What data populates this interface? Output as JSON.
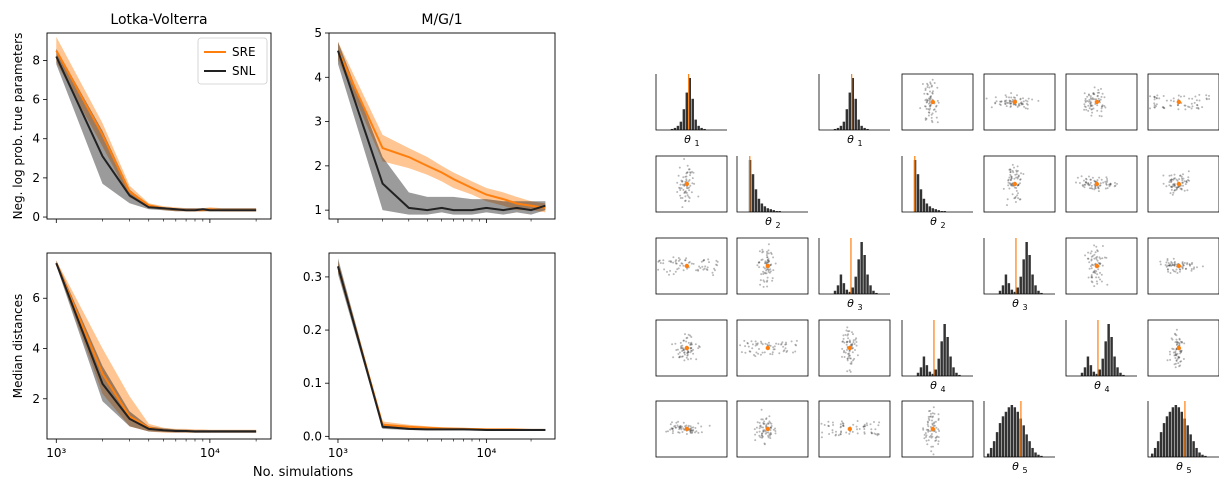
{
  "colors": {
    "sre": "#ff7f0e",
    "snl": "#222222",
    "sample": "#333333",
    "true_value": "#ff7f0e"
  },
  "chart_data": [
    {
      "type": "line",
      "title": "Lotka-Volterra",
      "ylabel": "Neg. log prob. true parameters",
      "xlabel": "",
      "xscale": "log",
      "xlim": [
        870,
        25000
      ],
      "ylim": [
        -0.1,
        9.4
      ],
      "yticks": [
        "0",
        "2",
        "4",
        "6",
        "8"
      ],
      "xticks": [],
      "legend": {
        "position": "top-right",
        "entries": [
          "SRE",
          "SNL"
        ]
      },
      "x": [
        1000,
        2000,
        3000,
        4000,
        5000,
        6000,
        7000,
        8000,
        9000,
        10000,
        12000,
        15000,
        20000
      ],
      "series": [
        {
          "name": "SRE",
          "values": [
            8.5,
            4.2,
            1.3,
            0.6,
            0.45,
            0.4,
            0.35,
            0.35,
            0.35,
            0.4,
            0.35,
            0.35,
            0.35
          ],
          "lower": [
            7.9,
            3.6,
            1.0,
            0.5,
            0.35,
            0.3,
            0.3,
            0.3,
            0.3,
            0.3,
            0.3,
            0.3,
            0.3
          ],
          "upper": [
            9.2,
            4.8,
            1.6,
            0.7,
            0.55,
            0.5,
            0.45,
            0.45,
            0.45,
            0.5,
            0.45,
            0.45,
            0.45
          ]
        },
        {
          "name": "SNL",
          "values": [
            8.2,
            3.1,
            1.1,
            0.5,
            0.45,
            0.4,
            0.35,
            0.35,
            0.4,
            0.35,
            0.35,
            0.35,
            0.35
          ],
          "lower": [
            7.8,
            1.7,
            0.7,
            0.4,
            0.35,
            0.3,
            0.3,
            0.3,
            0.3,
            0.3,
            0.3,
            0.3,
            0.3
          ],
          "upper": [
            8.6,
            4.4,
            1.4,
            0.6,
            0.5,
            0.45,
            0.45,
            0.45,
            0.45,
            0.45,
            0.45,
            0.45,
            0.45
          ]
        }
      ]
    },
    {
      "type": "line",
      "title": "M/G/1",
      "ylabel": "",
      "xlabel": "",
      "xscale": "log",
      "xlim": [
        870,
        29000
      ],
      "ylim": [
        0.8,
        5.0
      ],
      "yticks": [
        "1",
        "2",
        "3",
        "4",
        "5"
      ],
      "xticks": [],
      "x": [
        1000,
        2000,
        3000,
        4000,
        5000,
        6000,
        8000,
        10000,
        13000,
        16000,
        20000,
        25000
      ],
      "series": [
        {
          "name": "SRE",
          "values": [
            4.6,
            2.4,
            2.2,
            2.0,
            1.85,
            1.7,
            1.5,
            1.35,
            1.25,
            1.15,
            1.1,
            1.05
          ],
          "lower": [
            4.4,
            2.1,
            1.95,
            1.8,
            1.65,
            1.5,
            1.35,
            1.2,
            1.1,
            1.0,
            1.0,
            0.95
          ],
          "upper": [
            4.8,
            2.7,
            2.4,
            2.2,
            2.0,
            1.85,
            1.65,
            1.5,
            1.4,
            1.3,
            1.2,
            1.15
          ]
        },
        {
          "name": "SNL",
          "values": [
            4.6,
            1.6,
            1.05,
            1.0,
            1.05,
            1.0,
            1.0,
            1.05,
            1.0,
            1.05,
            1.0,
            1.1
          ],
          "lower": [
            4.3,
            1.0,
            0.9,
            0.9,
            0.95,
            0.9,
            0.9,
            0.95,
            0.9,
            0.95,
            0.9,
            1.0
          ],
          "upper": [
            4.8,
            2.2,
            1.4,
            1.3,
            1.3,
            1.3,
            1.25,
            1.25,
            1.2,
            1.2,
            1.2,
            1.2
          ]
        }
      ]
    },
    {
      "type": "line",
      "title": "",
      "ylabel": "Median distances",
      "xlabel": "",
      "xscale": "log",
      "xlim": [
        870,
        25000
      ],
      "ylim": [
        0.4,
        7.8
      ],
      "yticks": [
        "2",
        "4",
        "6"
      ],
      "xticks": [
        "10³",
        "10⁴"
      ],
      "x": [
        1000,
        2000,
        3000,
        4000,
        5000,
        6000,
        7000,
        8000,
        9000,
        10000,
        12000,
        15000,
        20000
      ],
      "series": [
        {
          "name": "SRE",
          "values": [
            7.4,
            3.0,
            1.3,
            0.85,
            0.75,
            0.72,
            0.72,
            0.7,
            0.7,
            0.7,
            0.7,
            0.7,
            0.7
          ],
          "lower": [
            7.3,
            2.2,
            0.9,
            0.7,
            0.65,
            0.65,
            0.65,
            0.65,
            0.65,
            0.65,
            0.65,
            0.65,
            0.65
          ],
          "upper": [
            7.5,
            4.0,
            2.1,
            1.0,
            0.85,
            0.8,
            0.8,
            0.78,
            0.78,
            0.77,
            0.77,
            0.77,
            0.77
          ]
        },
        {
          "name": "SNL",
          "values": [
            7.4,
            2.6,
            1.2,
            0.8,
            0.75,
            0.72,
            0.72,
            0.7,
            0.7,
            0.7,
            0.7,
            0.7,
            0.7
          ],
          "lower": [
            7.3,
            1.9,
            0.9,
            0.7,
            0.68,
            0.66,
            0.66,
            0.65,
            0.65,
            0.65,
            0.65,
            0.65,
            0.65
          ],
          "upper": [
            7.5,
            3.3,
            1.5,
            0.9,
            0.82,
            0.78,
            0.77,
            0.76,
            0.76,
            0.76,
            0.76,
            0.76,
            0.76
          ]
        }
      ]
    },
    {
      "type": "line",
      "title": "",
      "ylabel": "",
      "xlabel": "",
      "xscale": "log",
      "xlim": [
        870,
        29000
      ],
      "ylim": [
        -0.005,
        0.345
      ],
      "yticks": [
        "0.0",
        "0.1",
        "0.2",
        "0.3"
      ],
      "xticks": [
        "10³",
        "10⁴"
      ],
      "x": [
        1000,
        2000,
        3000,
        4000,
        5000,
        7000,
        10000,
        15000,
        20000,
        25000
      ],
      "series": [
        {
          "name": "SRE",
          "values": [
            0.32,
            0.022,
            0.018,
            0.016,
            0.015,
            0.014,
            0.013,
            0.013,
            0.012,
            0.012
          ],
          "lower": [
            0.31,
            0.018,
            0.015,
            0.014,
            0.013,
            0.012,
            0.011,
            0.011,
            0.011,
            0.011
          ],
          "upper": [
            0.33,
            0.028,
            0.022,
            0.019,
            0.017,
            0.016,
            0.015,
            0.014,
            0.014,
            0.014
          ]
        },
        {
          "name": "SNL",
          "values": [
            0.32,
            0.018,
            0.014,
            0.013,
            0.013,
            0.013,
            0.012,
            0.012,
            0.012,
            0.012
          ],
          "lower": [
            0.305,
            0.014,
            0.012,
            0.011,
            0.011,
            0.011,
            0.011,
            0.011,
            0.011,
            0.011
          ],
          "upper": [
            0.335,
            0.024,
            0.017,
            0.015,
            0.015,
            0.015,
            0.014,
            0.014,
            0.014,
            0.014
          ]
        }
      ]
    }
  ],
  "shared_xlabel": "No. simulations",
  "pairplot": {
    "type": "scatter",
    "rows": [
      [
        "hist",
        "",
        "hist",
        "scatter",
        "scatter",
        "scatter",
        "scatter"
      ],
      [
        "scatter",
        "hist",
        "",
        "hist",
        "scatter",
        "scatter",
        "scatter"
      ],
      [
        "scatter",
        "scatter",
        "hist",
        "",
        "hist",
        "scatter",
        "scatter"
      ],
      [
        "scatter",
        "scatter",
        "scatter",
        "hist",
        "",
        "hist",
        "scatter"
      ],
      [
        "scatter",
        "scatter",
        "scatter",
        "scatter",
        "hist",
        "",
        "hist"
      ]
    ],
    "hist_labels": [
      [
        "θ",
        "1"
      ],
      [
        "θ",
        "1"
      ],
      [
        "θ",
        "2"
      ],
      [
        "θ",
        "2"
      ],
      [
        "θ",
        "3"
      ],
      [
        "θ",
        "3"
      ],
      [
        "θ",
        "4"
      ],
      [
        "θ",
        "4"
      ],
      [
        "θ",
        "5"
      ],
      [
        "θ",
        "5"
      ]
    ],
    "hist_shapes": [
      "narrow",
      "narrow",
      "decay",
      "decay",
      "bimodal",
      "bimodal",
      "bimodal",
      "bimodal",
      "wide",
      "wide"
    ]
  }
}
